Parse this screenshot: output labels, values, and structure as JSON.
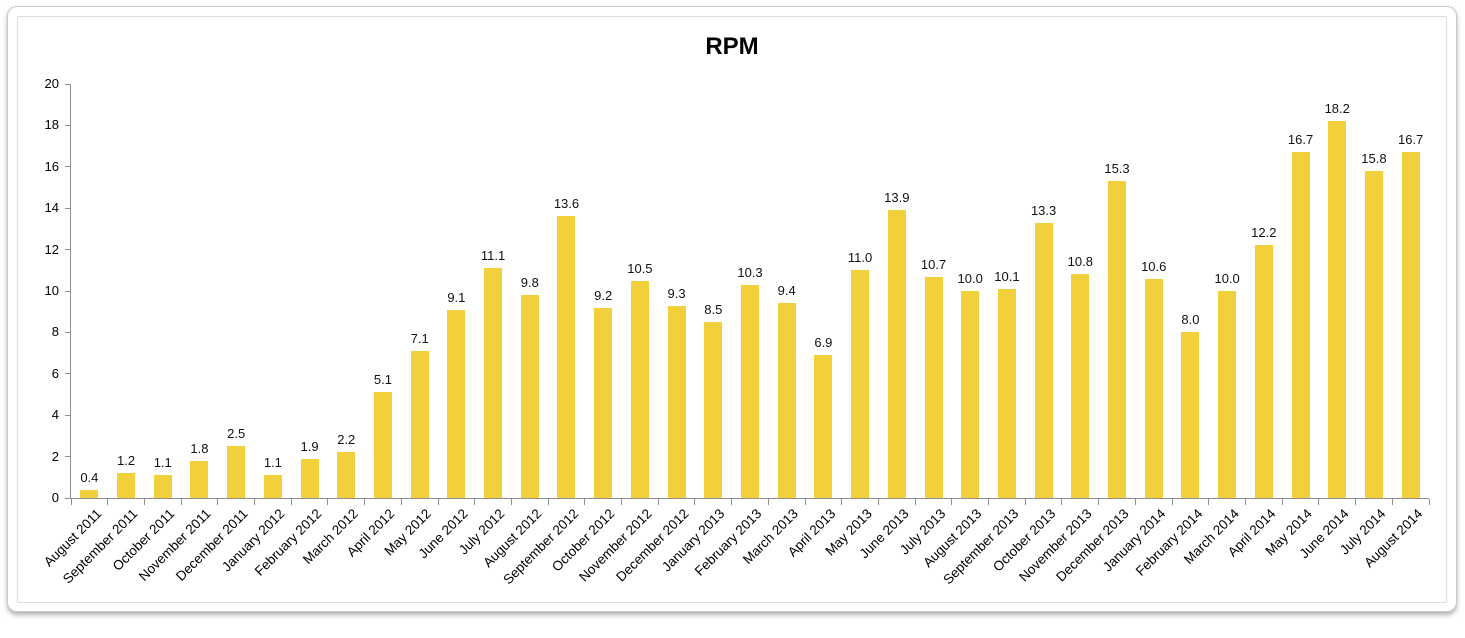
{
  "chart_data": {
    "type": "bar",
    "title": "RPM",
    "categories": [
      "August 2011",
      "September 2011",
      "October 2011",
      "November 2011",
      "December 2011",
      "January 2012",
      "February 2012",
      "March 2012",
      "April 2012",
      "May 2012",
      "June 2012",
      "July 2012",
      "August 2012",
      "September 2012",
      "October 2012",
      "November 2012",
      "December 2012",
      "January 2013",
      "February 2013",
      "March 2013",
      "April 2013",
      "May 2013",
      "June 2013",
      "July 2013",
      "August 2013",
      "September 2013",
      "October 2013",
      "November 2013",
      "December 2013",
      "January 2014",
      "February 2014",
      "March 2014",
      "April 2014",
      "May 2014",
      "June 2014",
      "July 2014",
      "August 2014"
    ],
    "values": [
      0.4,
      1.2,
      1.1,
      1.8,
      2.5,
      1.1,
      1.9,
      2.2,
      5.1,
      7.1,
      9.1,
      11.1,
      9.8,
      13.6,
      9.2,
      10.5,
      9.3,
      8.5,
      10.3,
      9.4,
      6.9,
      11.0,
      13.9,
      10.7,
      10.0,
      10.1,
      13.3,
      10.8,
      15.3,
      10.6,
      8.0,
      10.0,
      12.2,
      16.7,
      18.2,
      15.8,
      16.7
    ],
    "xlabel": "",
    "ylabel": "",
    "ylim": [
      0,
      20
    ],
    "yticks": [
      0,
      2,
      4,
      6,
      8,
      10,
      12,
      14,
      16,
      18,
      20
    ],
    "grid": false,
    "legend": "none",
    "value_label_format": "one-decimal",
    "x_label_rotation_deg": -45,
    "bar_color": "#F2D03B",
    "axis_color": "#8e8e8e",
    "value_label_color": "#111111",
    "text_color": "#000000"
  }
}
